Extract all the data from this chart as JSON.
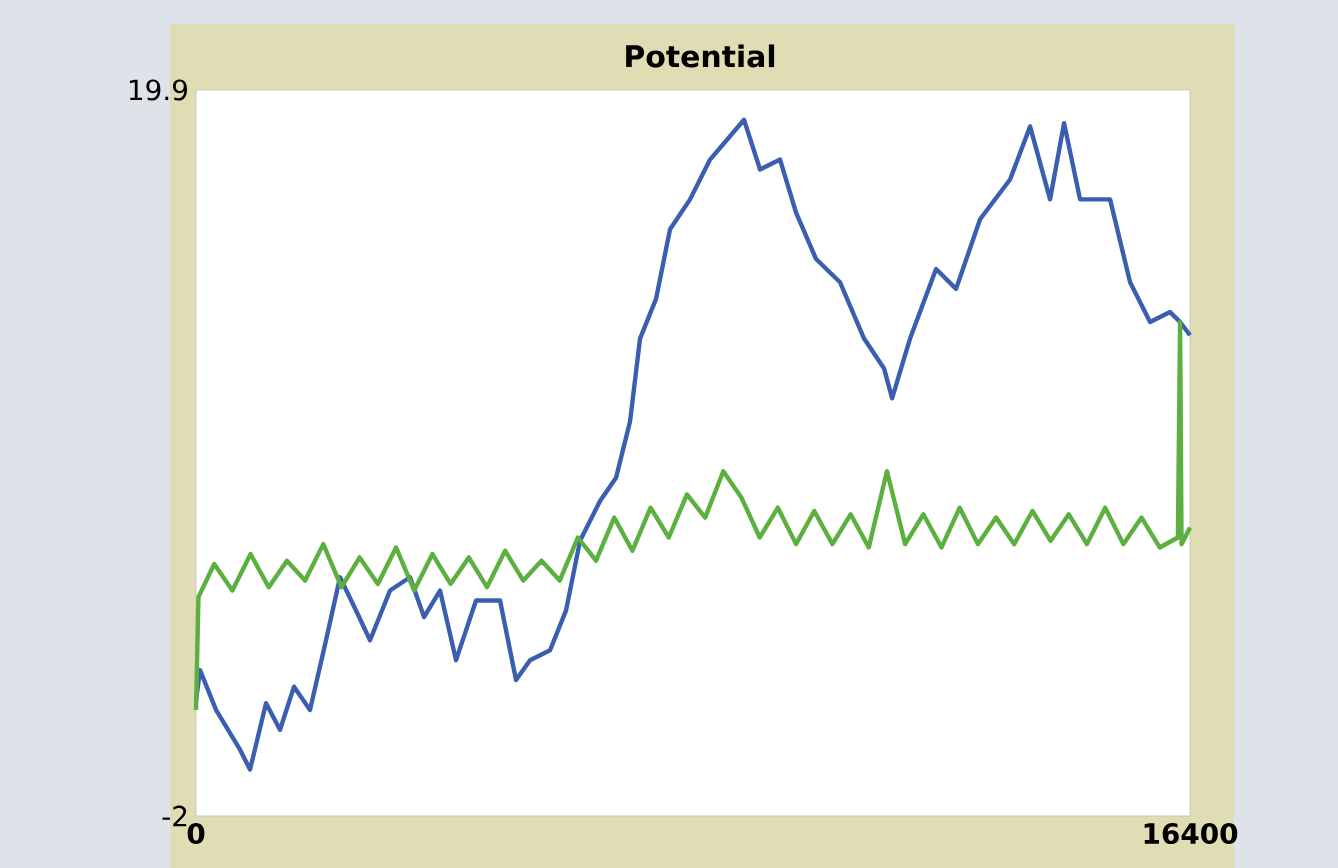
{
  "chart_data": {
    "type": "line",
    "title": "Potential",
    "xlim": [
      0,
      16400
    ],
    "ylim": [
      -2,
      19.9
    ],
    "xticks": [
      0,
      16400
    ],
    "yticks": [
      -2,
      19.9
    ],
    "marker": "none",
    "series": [
      {
        "color": "#3a5fb0",
        "x": [
          0,
          66,
          330,
          726,
          891,
          1155,
          1386,
          1617,
          1881,
          2145,
          2376,
          2640,
          2871,
          3201,
          3531,
          3762,
          4026,
          4290,
          4620,
          5016,
          5280,
          5511,
          5841,
          6105,
          6336,
          6666,
          6930,
          7161,
          7326,
          7590,
          7821,
          8151,
          8481,
          9042,
          9306,
          9636,
          9900,
          10230,
          10626,
          11022,
          11352,
          11484,
          11781,
          12210,
          12540,
          12936,
          13431,
          13761,
          14091,
          14322,
          14586,
          15081,
          15411,
          15741,
          16071,
          16236,
          16400
        ],
        "values": [
          1.5,
          2.4,
          1.2,
          0.0,
          -0.6,
          1.4,
          0.6,
          1.9,
          1.2,
          3.3,
          5.2,
          4.2,
          3.3,
          4.8,
          5.2,
          4.0,
          4.8,
          2.7,
          4.5,
          4.5,
          2.1,
          2.7,
          3.0,
          4.2,
          6.3,
          7.5,
          8.2,
          9.9,
          12.4,
          13.6,
          15.7,
          16.6,
          17.8,
          19.0,
          17.5,
          17.8,
          16.2,
          14.8,
          14.1,
          12.4,
          11.5,
          10.6,
          12.4,
          14.5,
          13.9,
          16.0,
          17.2,
          18.8,
          16.6,
          18.9,
          16.6,
          16.6,
          14.1,
          12.9,
          13.2,
          12.9,
          12.5
        ]
      },
      {
        "color": "#5bb040",
        "x": [
          0,
          40,
          300,
          600,
          900,
          1200,
          1500,
          1800,
          2100,
          2400,
          2700,
          3000,
          3300,
          3600,
          3900,
          4200,
          4500,
          4800,
          5100,
          5400,
          5700,
          6000,
          6300,
          6600,
          6900,
          7200,
          7500,
          7800,
          8100,
          8400,
          8700,
          9000,
          9300,
          9600,
          9900,
          10200,
          10500,
          10800,
          11100,
          11400,
          11700,
          12000,
          12300,
          12600,
          12900,
          13200,
          13500,
          13800,
          14100,
          14400,
          14700,
          15000,
          15300,
          15600,
          15900,
          16200,
          16236,
          16260,
          16400
        ],
        "values": [
          1.2,
          4.6,
          5.6,
          4.8,
          5.9,
          4.9,
          5.7,
          5.1,
          6.2,
          4.9,
          5.8,
          5.0,
          6.1,
          4.8,
          5.9,
          5.0,
          5.8,
          4.9,
          6.0,
          5.1,
          5.7,
          5.1,
          6.4,
          5.7,
          7.0,
          6.0,
          7.3,
          6.4,
          7.7,
          7.0,
          8.4,
          7.6,
          6.4,
          7.3,
          6.2,
          7.2,
          6.2,
          7.1,
          6.1,
          8.4,
          6.2,
          7.1,
          6.1,
          7.3,
          6.2,
          7.0,
          6.2,
          7.2,
          6.3,
          7.1,
          6.2,
          7.3,
          6.2,
          7.0,
          6.1,
          6.4,
          12.9,
          6.2,
          6.7
        ]
      }
    ]
  }
}
